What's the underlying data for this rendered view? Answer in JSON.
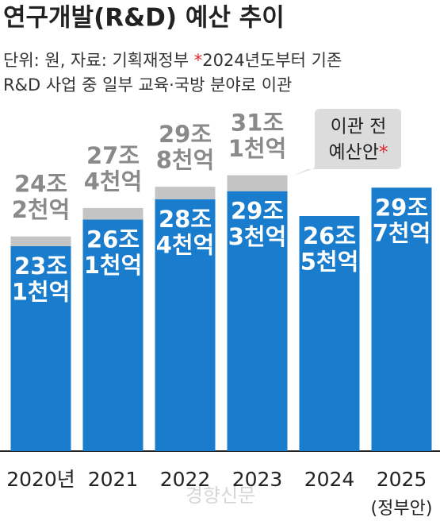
{
  "chart_data": {
    "type": "stacked_bar",
    "title": "연구개발(R&D) 예산 추이",
    "subtitle_lines": [
      "단위: 원, 자료: 기획재정부 ",
      "2024년도부터 기존",
      "R&D 사업 중 일부 교육·국방 분야로 이관"
    ],
    "note_mark": "*",
    "categories": [
      "2020년",
      "2021",
      "2022",
      "2023",
      "2024",
      "2025"
    ],
    "category_sublabels": [
      null,
      null,
      null,
      null,
      null,
      "(정부안)"
    ],
    "series": [
      {
        "color": "#1a7ccc",
        "values": [
          23.1,
          26.1,
          28.4,
          29.3,
          26.5,
          29.7
        ],
        "value_labels": [
          "23조 1천억",
          "26조 1천억",
          "28조 4천억",
          "29조 3천억",
          "26조 5천억",
          "29조 7천억"
        ]
      },
      {
        "color": "#c4c4c4",
        "values": [
          1.1,
          1.3,
          1.4,
          1.8,
          null,
          null
        ]
      }
    ],
    "totals": {
      "values": [
        24.2,
        27.4,
        29.8,
        31.1,
        null,
        null
      ],
      "labels": [
        "24조 2천억",
        "27조 4천억",
        "29조 8천억",
        "31조 1천억",
        null,
        null
      ]
    },
    "annotation": {
      "lines": [
        "이관 전",
        "예산안"
      ],
      "mark": "*"
    },
    "watermark": "경향신문"
  }
}
